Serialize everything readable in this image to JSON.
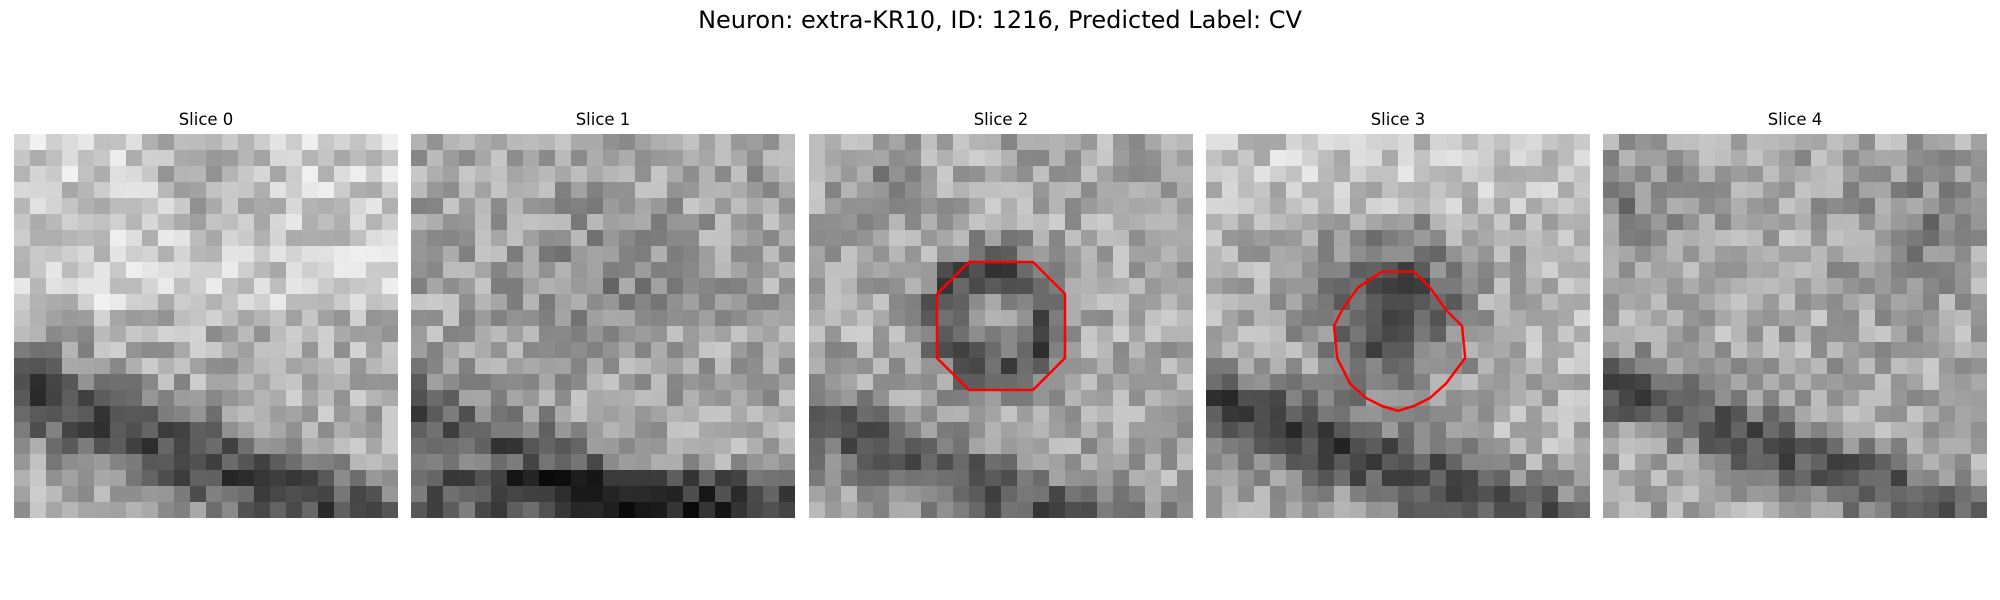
{
  "figure": {
    "title": "Neuron: extra-KR10, ID: 1216, Predicted Label: CV"
  },
  "panels": [
    {
      "title": "Slice 0",
      "has_contour": false
    },
    {
      "title": "Slice 1",
      "has_contour": false
    },
    {
      "title": "Slice 2",
      "has_contour": true
    },
    {
      "title": "Slice 3",
      "has_contour": true
    },
    {
      "title": "Slice 4",
      "has_contour": false
    }
  ],
  "colors": {
    "contour": "#ff0000",
    "background": "#ffffff"
  }
}
